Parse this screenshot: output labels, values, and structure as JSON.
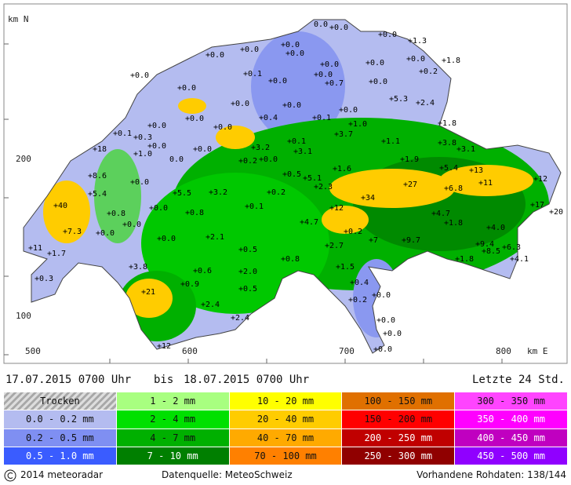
{
  "header": {
    "from": "17.07.2015 0700 Uhr",
    "bis": "bis",
    "to": "18.07.2015 0700 Uhr",
    "period": "Letzte 24 Std."
  },
  "axes": {
    "y_labels": [
      "km N",
      "200",
      "100"
    ],
    "x_labels": [
      "500",
      "600",
      "700",
      "800",
      "km E"
    ]
  },
  "stations": [
    "0.0",
    "+0.0",
    "+0.0",
    "+0.0",
    "+0.0",
    "+0.0",
    "+1.3",
    "+0.0",
    "+0.0",
    "+1.8",
    "+0.2",
    "+0.0",
    "+0.0",
    "+0.1",
    "+0.0",
    "+0.0",
    "+0.0",
    "+0.7",
    "+0.0",
    "+0.0",
    "+5.3",
    "+2.4",
    "+0.0",
    "+0.0",
    "+0.0",
    "+0.4",
    "+0.1",
    "+0.0",
    "+1.8",
    "+0.1",
    "+0.3",
    "+0.0",
    "+1.0",
    "+0.0",
    "+0.0",
    "+3.7",
    "+1.0",
    "+3.2",
    "+0.1",
    "+3.1",
    "+1.1",
    "+3.8",
    "+3.1",
    "+18",
    "0.0",
    "+0.0",
    "+0.2",
    "+0.0",
    "+8.6",
    "+0.0",
    "+0.5",
    "+5.1",
    "+1.6",
    "+2.3",
    "+1.9",
    "+5.4",
    "+13",
    "+11",
    "+12",
    "+5.5",
    "+3.2",
    "+0.2",
    "+5.4",
    "+27",
    "+6.8",
    "+34",
    "+40",
    "+0.0",
    "+0.8",
    "+0.1",
    "+12",
    "+17",
    "+20",
    "+4.7",
    "+1.8",
    "+0.8",
    "+0.0",
    "+0.0",
    "+7.3",
    "+4.7",
    "+0.2",
    "+7",
    "+4.0",
    "+9.7",
    "+0.0",
    "+2.1",
    "+2.7",
    "+11",
    "+1.7",
    "+0.5",
    "+0.8",
    "+9.4",
    "+8.5",
    "+6.3",
    "+4.1",
    "+1.8",
    "+3.8",
    "+1.5",
    "+0.3",
    "+0.6",
    "+2.0",
    "+0.9",
    "+0.4",
    "+0.2",
    "+0.0",
    "+21",
    "+0.5",
    "+2.4",
    "+2.4",
    "+0.0",
    "+0.0",
    "+0.0",
    "+12"
  ],
  "legend": [
    [
      {
        "label": "Trocken",
        "color": "#c8c8c8"
      },
      {
        "label": "0.0 - 0.2 mm",
        "color": "#b4bcf0"
      },
      {
        "label": "0.2 - 0.5 mm",
        "color": "#7f8ff2"
      },
      {
        "label": "0.5 - 1.0 mm",
        "color": "#3a5cff"
      }
    ],
    [
      {
        "label": "1 - 2 mm",
        "color": "#a8ff80"
      },
      {
        "label": "2 - 4 mm",
        "color": "#00e000"
      },
      {
        "label": "4 - 7 mm",
        "color": "#00b000"
      },
      {
        "label": "7 - 10 mm",
        "color": "#007f00"
      }
    ],
    [
      {
        "label": "10 - 20 mm",
        "color": "#ffff00"
      },
      {
        "label": "20 - 40 mm",
        "color": "#ffcc00"
      },
      {
        "label": "40 - 70 mm",
        "color": "#ffaa00"
      },
      {
        "label": "70 - 100 mm",
        "color": "#ff8000"
      }
    ],
    [
      {
        "label": "100 - 150 mm",
        "color": "#e07000"
      },
      {
        "label": "150 - 200 mm",
        "color": "#ff0000"
      },
      {
        "label": "200 - 250 mm",
        "color": "#c00000"
      },
      {
        "label": "250 - 300 mm",
        "color": "#900000"
      }
    ],
    [
      {
        "label": "300 - 350 mm",
        "color": "#ff44ff"
      },
      {
        "label": "350 - 400 mm",
        "color": "#ff00ff"
      },
      {
        "label": "400 - 450 mm",
        "color": "#c000c0"
      },
      {
        "label": "450 - 500 mm",
        "color": "#9000ff"
      }
    ]
  ],
  "footer": {
    "copyright": "2014 meteoradar",
    "source": "Datenquelle: MeteoSchweiz",
    "data": "Vorhandene Rohdaten: 138/144"
  }
}
